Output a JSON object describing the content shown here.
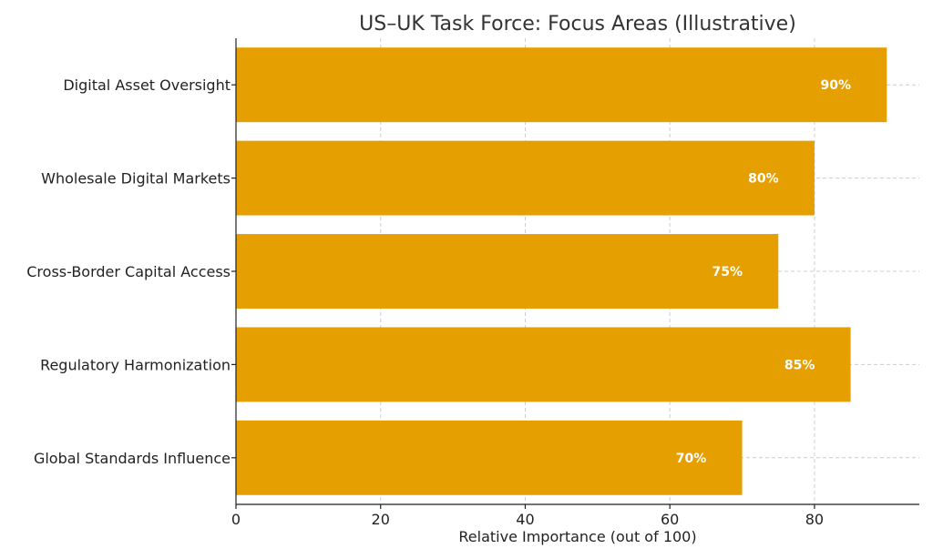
{
  "chart_data": {
    "type": "bar",
    "orientation": "horizontal",
    "title": "US–UK Task Force: Focus Areas (Illustrative)",
    "xlabel": "Relative Importance (out of 100)",
    "ylabel": "",
    "categories": [
      "Digital Asset Oversight",
      "Wholesale Digital Markets",
      "Cross-Border Capital Access",
      "Regulatory Harmonization",
      "Global Standards Influence"
    ],
    "values": [
      90,
      80,
      75,
      85,
      70
    ],
    "data_labels": [
      "90%",
      "80%",
      "75%",
      "85%",
      "70%"
    ],
    "xlim": [
      0,
      94.5
    ],
    "xticks": [
      0,
      20,
      40,
      60,
      80
    ],
    "xtick_labels": [
      "0",
      "20",
      "40",
      "60",
      "80"
    ],
    "grid": true,
    "bar_color": "#E69F00",
    "label_color": "#FFFFFF"
  }
}
